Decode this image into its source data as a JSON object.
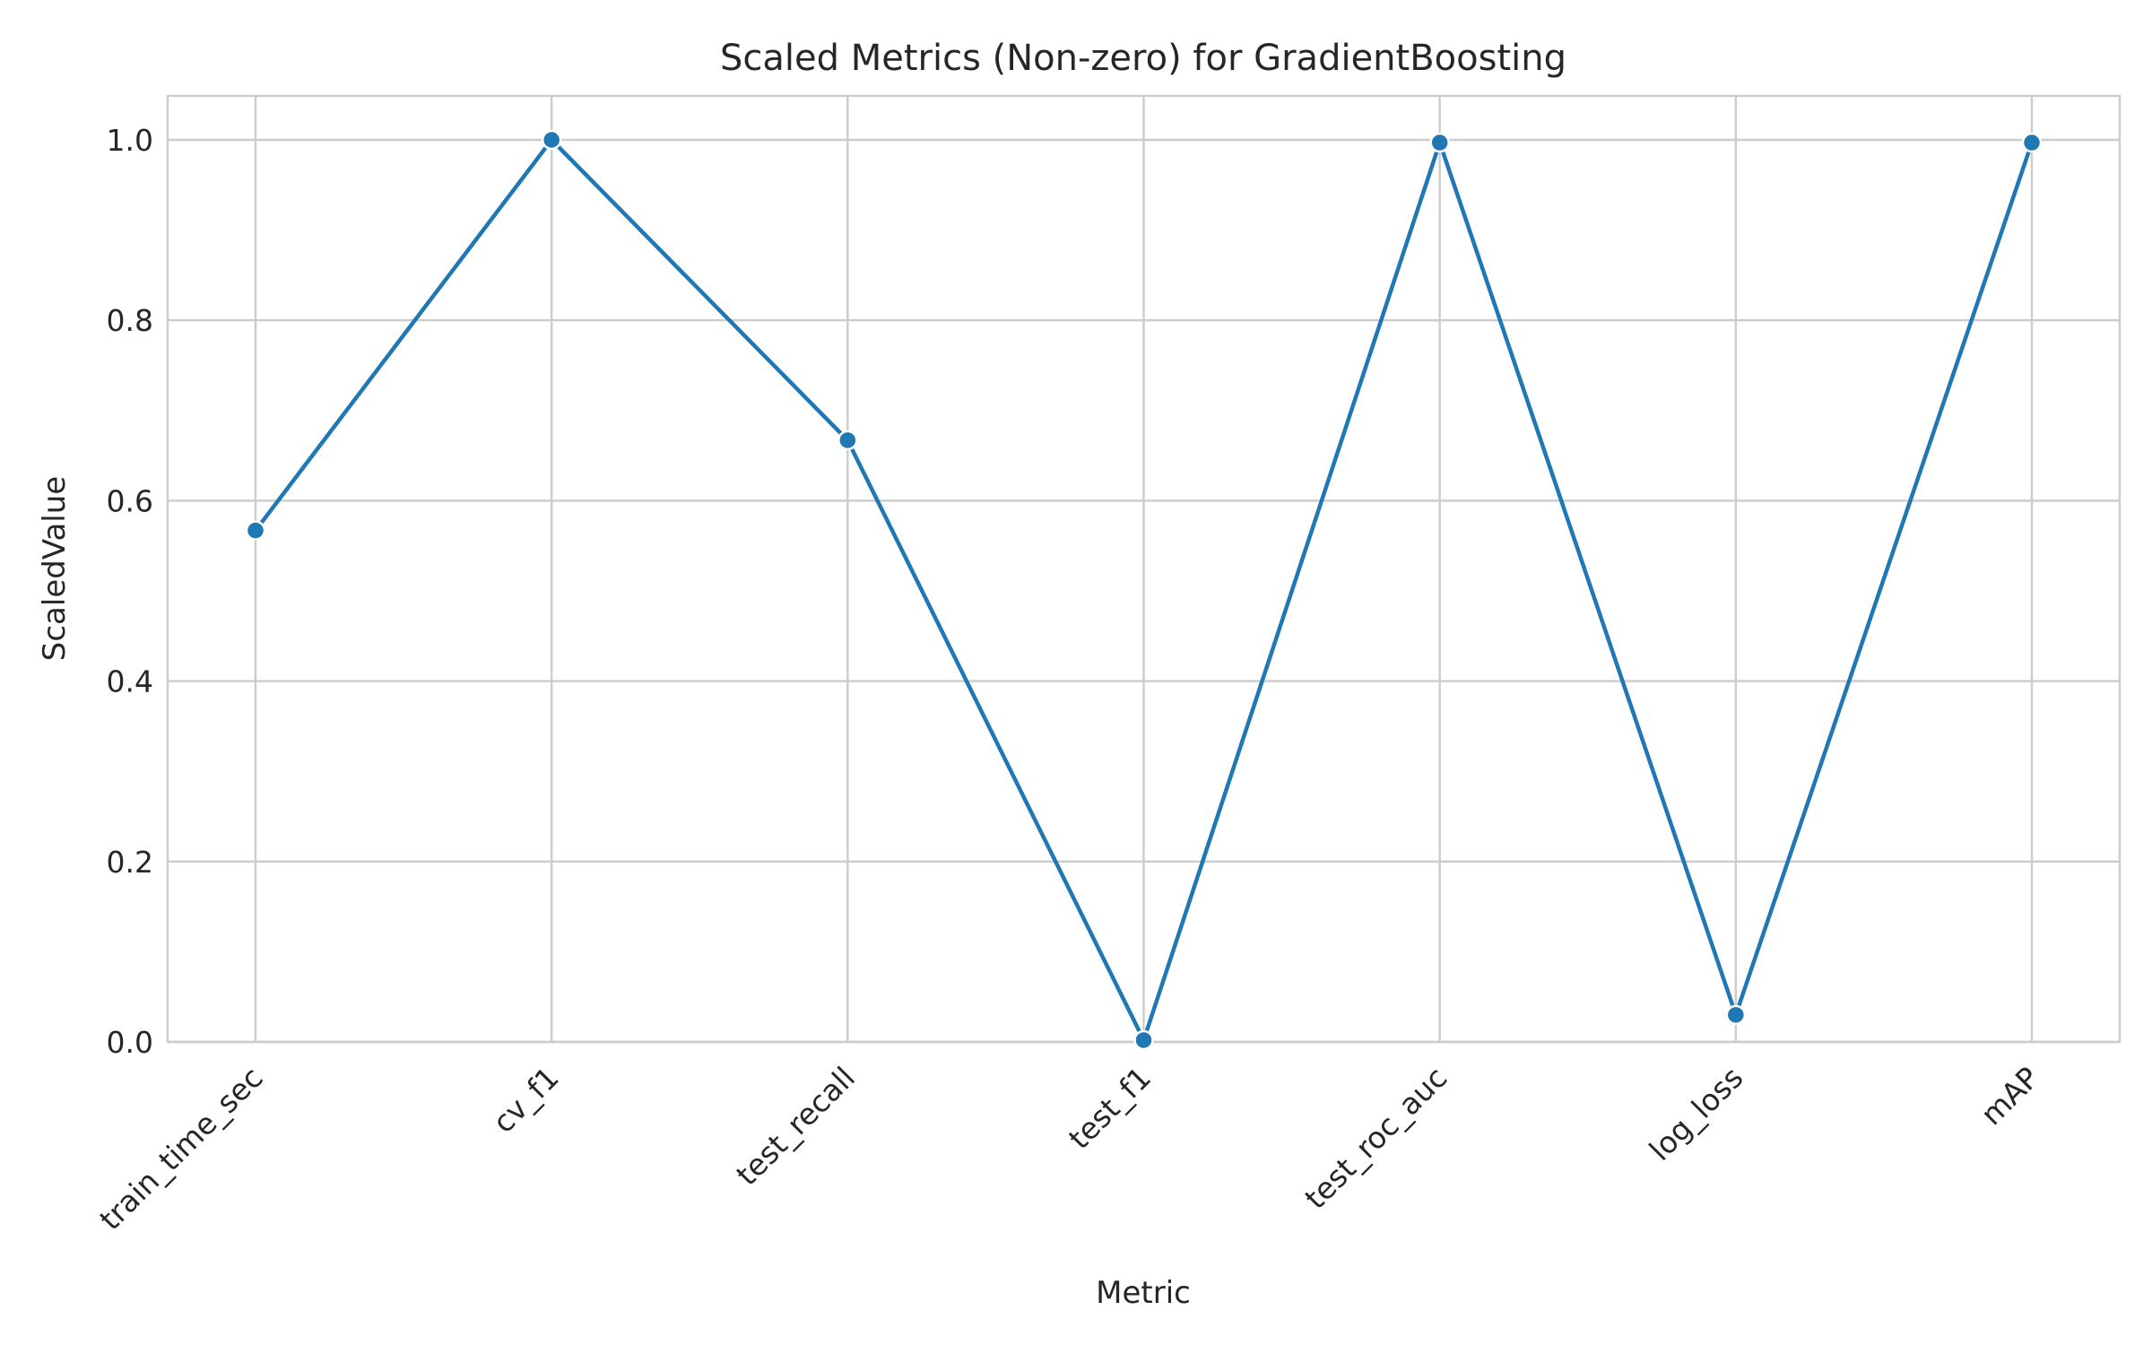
{
  "chart_data": {
    "type": "line",
    "title": "Scaled Metrics (Non-zero) for GradientBoosting",
    "xlabel": "Metric",
    "ylabel": "ScaledValue",
    "categories": [
      "train_time_sec",
      "cv_f1",
      "test_recall",
      "test_f1",
      "test_roc_auc",
      "log_loss",
      "mAP"
    ],
    "series": [
      {
        "values": [
          0.567,
          1.0,
          0.667,
          0.002,
          0.997,
          0.03,
          0.997
        ]
      }
    ],
    "ylim": [
      0,
      1.05
    ],
    "yticks": [
      "0.0",
      "0.2",
      "0.4",
      "0.6",
      "0.8",
      "1.0"
    ],
    "grid": true,
    "color": "#1f77b4"
  }
}
